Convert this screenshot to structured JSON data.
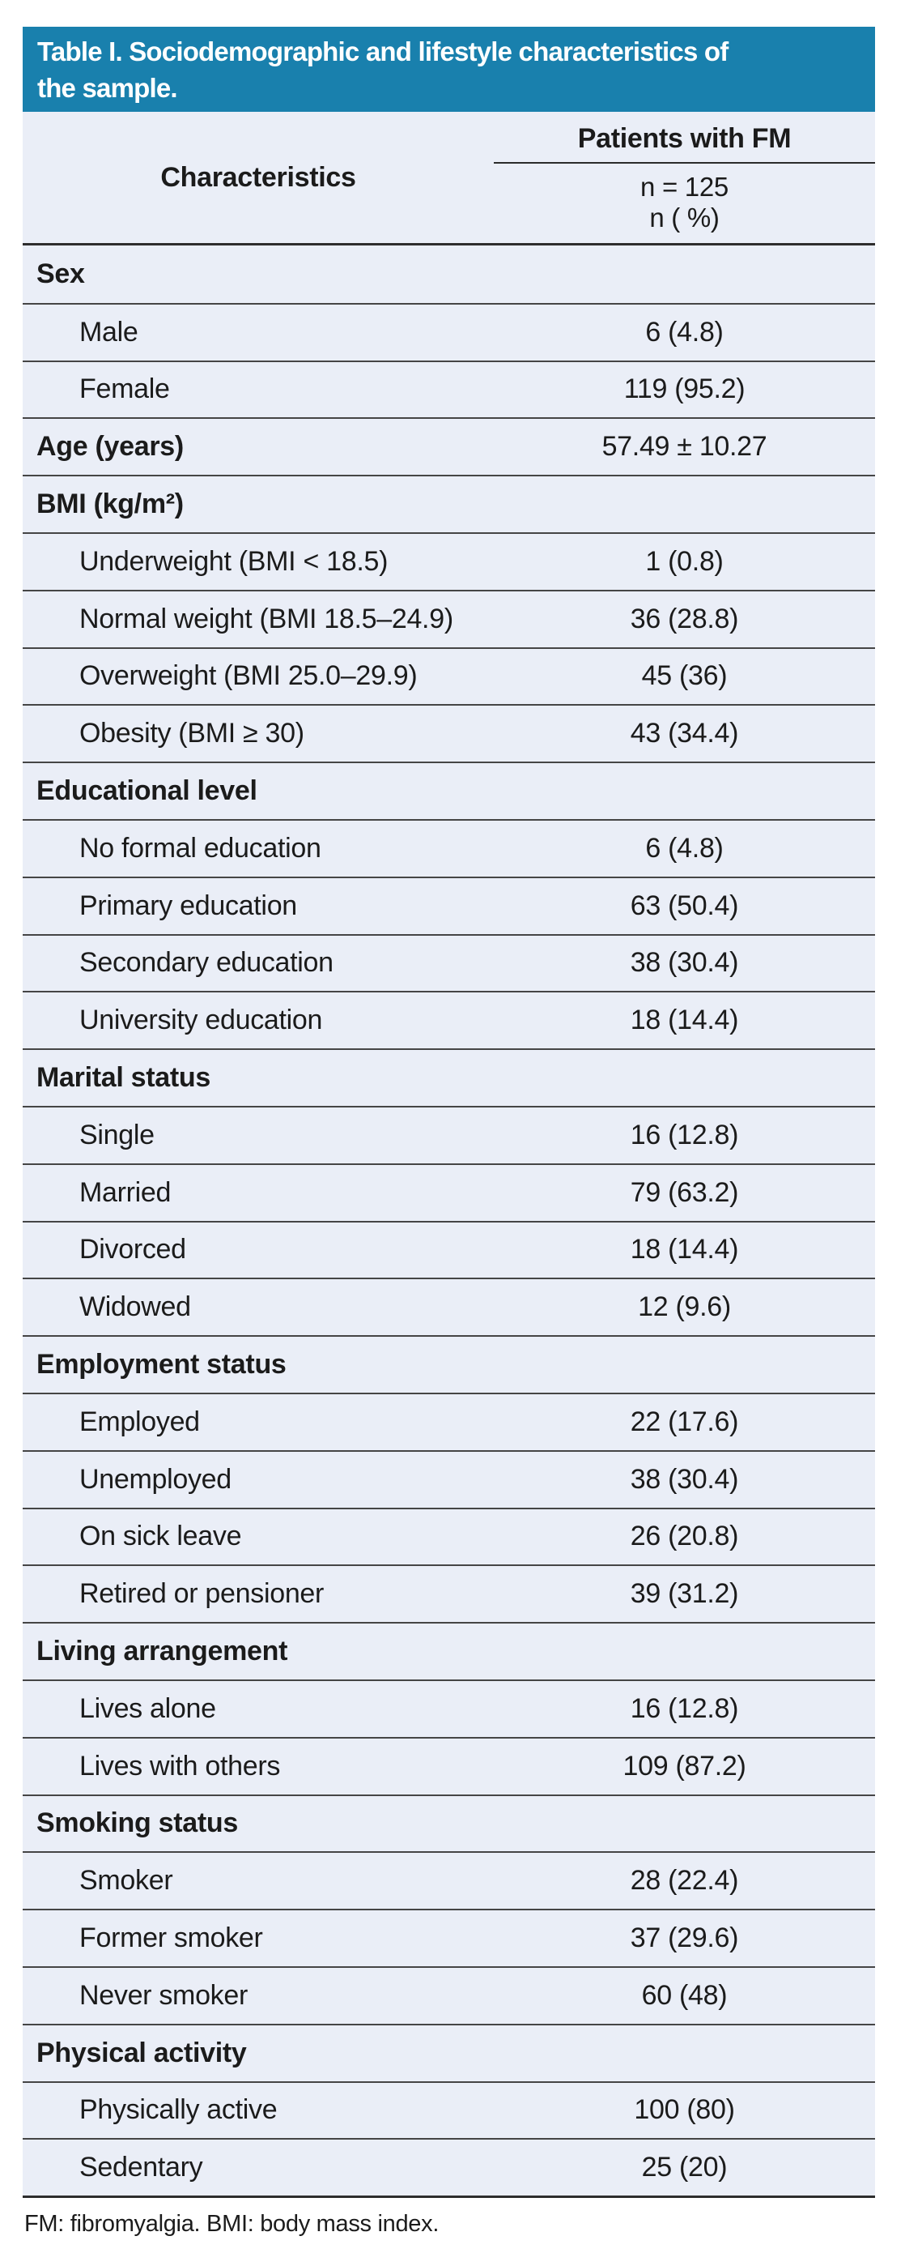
{
  "colors": {
    "title_bg": "#1980ad",
    "title_fg": "#ffffff",
    "table_bg": "#eaeef7",
    "rule_dark": "#2d2d2d",
    "rule_light": "#454545",
    "text": "#1b1b1b"
  },
  "title": {
    "line1": "Table I. Sociodemographic and lifestyle characteristics of",
    "line2": "the sample."
  },
  "header": {
    "col1": "Characteristics",
    "col2_group": "Patients with FM",
    "col2_sub1": "n = 125",
    "col2_sub2": "n ( %)"
  },
  "rows": [
    {
      "type": "section",
      "label": "Sex",
      "value": ""
    },
    {
      "type": "data",
      "label": "Male",
      "value": "6 (4.8)"
    },
    {
      "type": "data",
      "label": "Female",
      "value": "119 (95.2)"
    },
    {
      "type": "bold-data",
      "label": "Age (years)",
      "value": "57.49 ± 10.27"
    },
    {
      "type": "section",
      "label": "BMI (kg/m²)",
      "value": ""
    },
    {
      "type": "data",
      "label": "Underweight (BMI < 18.5)",
      "value": "1 (0.8)"
    },
    {
      "type": "data",
      "label": "Normal weight (BMI 18.5–24.9)",
      "value": "36 (28.8)"
    },
    {
      "type": "data",
      "label": "Overweight (BMI 25.0–29.9)",
      "value": "45 (36)"
    },
    {
      "type": "data",
      "label": "Obesity (BMI ≥ 30)",
      "value": "43 (34.4)"
    },
    {
      "type": "section",
      "label": "Educational level",
      "value": ""
    },
    {
      "type": "data",
      "label": "No formal education",
      "value": "6 (4.8)"
    },
    {
      "type": "data",
      "label": "Primary education",
      "value": "63 (50.4)"
    },
    {
      "type": "data",
      "label": "Secondary education",
      "value": "38 (30.4)"
    },
    {
      "type": "data",
      "label": "University education",
      "value": "18 (14.4)"
    },
    {
      "type": "section",
      "label": "Marital status",
      "value": ""
    },
    {
      "type": "data",
      "label": "Single",
      "value": "16 (12.8)"
    },
    {
      "type": "data",
      "label": "Married",
      "value": "79 (63.2)"
    },
    {
      "type": "data",
      "label": "Divorced",
      "value": "18 (14.4)"
    },
    {
      "type": "data",
      "label": "Widowed",
      "value": "12 (9.6)"
    },
    {
      "type": "section",
      "label": "Employment status",
      "value": ""
    },
    {
      "type": "data",
      "label": "Employed",
      "value": "22 (17.6)"
    },
    {
      "type": "data",
      "label": "Unemployed",
      "value": "38 (30.4)"
    },
    {
      "type": "data",
      "label": "On sick leave",
      "value": "26 (20.8)"
    },
    {
      "type": "data",
      "label": "Retired or pensioner",
      "value": "39 (31.2)"
    },
    {
      "type": "section",
      "label": "Living arrangement",
      "value": ""
    },
    {
      "type": "data",
      "label": "Lives alone",
      "value": "16 (12.8)"
    },
    {
      "type": "data",
      "label": "Lives with others",
      "value": "109 (87.2)"
    },
    {
      "type": "section",
      "label": "Smoking status",
      "value": ""
    },
    {
      "type": "data",
      "label": "Smoker",
      "value": "28 (22.4)"
    },
    {
      "type": "data",
      "label": "Former smoker",
      "value": "37 (29.6)"
    },
    {
      "type": "data",
      "label": "Never smoker",
      "value": "60 (48)"
    },
    {
      "type": "section",
      "label": "Physical activity",
      "value": ""
    },
    {
      "type": "data",
      "label": "Physically active",
      "value": "100 (80)"
    },
    {
      "type": "data",
      "label": "Sedentary",
      "value": "25 (20)"
    }
  ],
  "footnote": "FM: fibromyalgia. BMI: body mass index."
}
